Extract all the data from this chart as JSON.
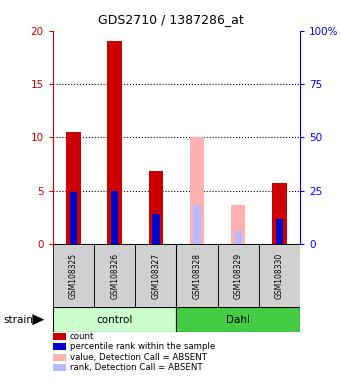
{
  "title": "GDS2710 / 1387286_at",
  "samples": [
    "GSM108325",
    "GSM108326",
    "GSM108327",
    "GSM108328",
    "GSM108329",
    "GSM108330"
  ],
  "red_values": [
    10.5,
    19.0,
    6.8,
    0,
    0,
    5.7
  ],
  "blue_values": [
    4.9,
    5.0,
    2.8,
    0,
    0,
    2.3
  ],
  "pink_values": [
    0,
    0,
    0,
    10.0,
    3.6,
    0
  ],
  "lavender_values": [
    0,
    0,
    0,
    3.6,
    1.2,
    0
  ],
  "ylim": [
    0,
    20
  ],
  "yticks_left": [
    0,
    5,
    10,
    15,
    20
  ],
  "yticks_right": [
    0,
    25,
    50,
    75,
    100
  ],
  "dotted_lines": [
    5,
    10,
    15
  ],
  "red_color": "#cc0000",
  "blue_color": "#0000cc",
  "pink_color": "#ffb0b0",
  "lavender_color": "#b8b8ff",
  "group_bg_color": "#d0d0d0",
  "control_fill_light": "#ccffcc",
  "dahl_fill_dark": "#44cc44",
  "bar_width": 0.35,
  "blue_bar_width": 0.18,
  "legend_items": [
    {
      "color": "#cc0000",
      "label": "count"
    },
    {
      "color": "#0000cc",
      "label": "percentile rank within the sample"
    },
    {
      "color": "#ffb0b0",
      "label": "value, Detection Call = ABSENT"
    },
    {
      "color": "#b8b8ff",
      "label": "rank, Detection Call = ABSENT"
    }
  ]
}
